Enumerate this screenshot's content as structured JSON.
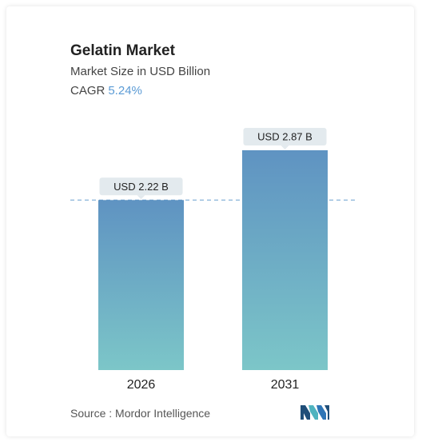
{
  "title": "Gelatin Market",
  "subtitle": "Market Size in USD Billion",
  "cagr": {
    "label": "CAGR",
    "value": "5.24%"
  },
  "source": "Source :  Mordor Intelligence",
  "logo_icon": "mordor-intelligence-logo",
  "colors": {
    "bar_top": "#5f93c2",
    "bar_bottom": "#7cc6c8",
    "label_bg": "#e3eaee",
    "reference_line": "#6aa0cf",
    "cagr_accent": "#5b9bd5"
  },
  "chart_data": {
    "type": "bar",
    "title": "Gelatin Market",
    "subtitle": "Market Size in USD Billion",
    "categories": [
      "2026",
      "2031"
    ],
    "values": [
      2.22,
      2.87
    ],
    "data_labels": [
      "USD 2.22 B",
      "USD 2.87 B"
    ],
    "reference_line_at": 2.22,
    "xlabel": "",
    "ylabel": "",
    "ylim": [
      0,
      2.87
    ],
    "grid": false,
    "legend": "none"
  }
}
